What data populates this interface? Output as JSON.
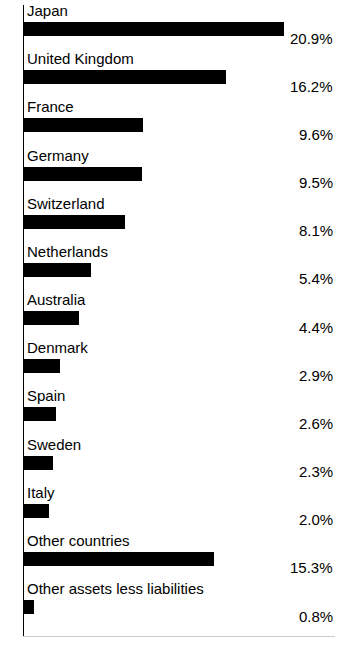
{
  "chart_data": {
    "type": "bar",
    "orientation": "horizontal",
    "categories": [
      "Japan",
      "United Kingdom",
      "France",
      "Germany",
      "Switzerland",
      "Netherlands",
      "Australia",
      "Denmark",
      "Spain",
      "Sweden",
      "Italy",
      "Other countries",
      "Other assets less liabilities"
    ],
    "values": [
      20.9,
      16.2,
      9.6,
      9.5,
      8.1,
      5.4,
      4.4,
      2.9,
      2.6,
      2.3,
      2.0,
      15.3,
      0.8
    ],
    "value_labels": [
      "20.9%",
      "16.2%",
      "9.6%",
      "9.5%",
      "8.1%",
      "5.4%",
      "4.4%",
      "2.9%",
      "2.6%",
      "2.3%",
      "2.0%",
      "15.3%",
      "0.8%"
    ],
    "data_labels": true,
    "color": "#000000",
    "xlim": [
      0,
      25
    ],
    "grid": false
  }
}
